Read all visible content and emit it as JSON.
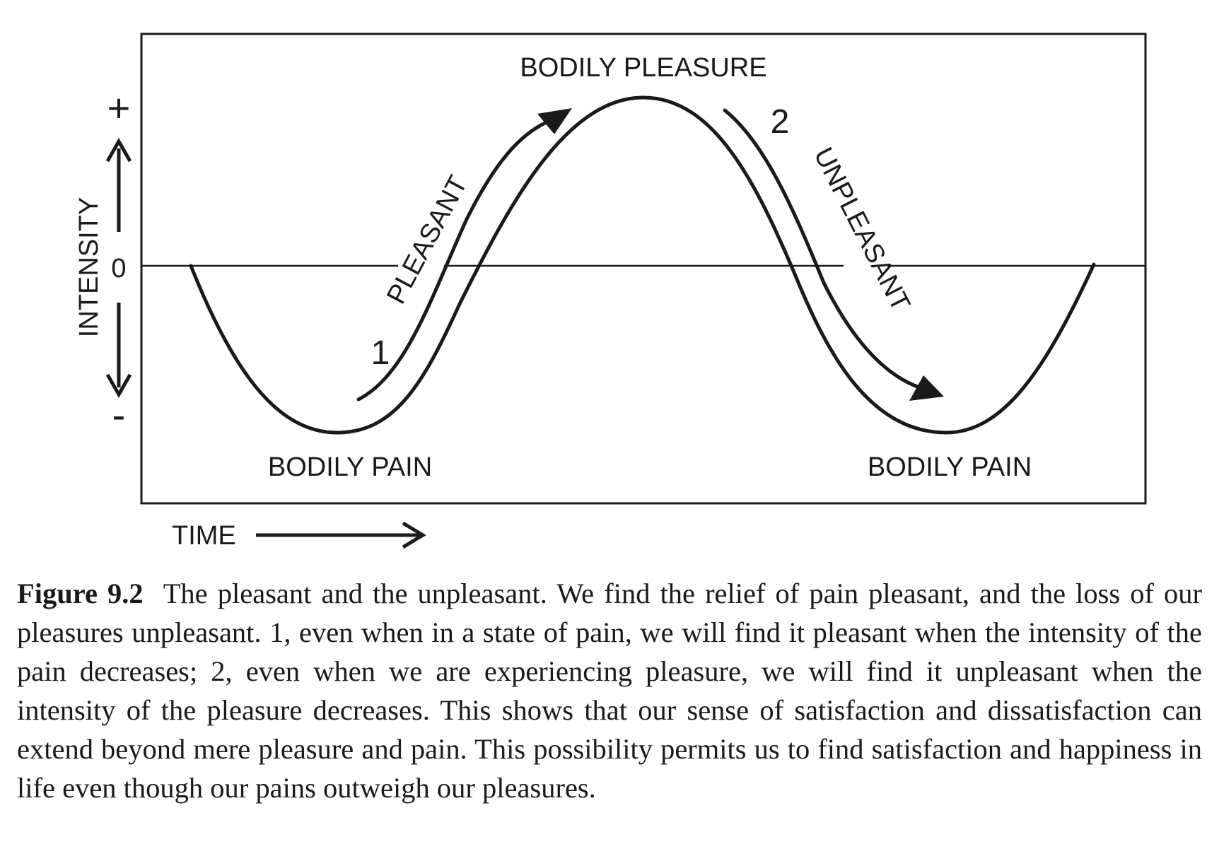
{
  "diagram": {
    "title_top": "BODILY PLEASURE",
    "label_pain_left": "BODILY PAIN",
    "label_pain_right": "BODILY PAIN",
    "label_pleasant": "PLEASANT",
    "label_unpleasant": "UNPLEASANT",
    "marker_1": "1",
    "marker_2": "2",
    "y_axis_label": "INTENSITY",
    "y_plus": "+",
    "y_zero": "0",
    "y_minus": "-",
    "x_axis_label": "TIME"
  },
  "caption": {
    "label": "Figure 9.2",
    "text": "The pleasant and the unpleasant. We find the relief of pain pleasant, and the loss of our pleasures unpleasant. 1, even when in a state of pain, we will find it pleasant when the intensity of the pain decreases; 2, even when we are experiencing pleasure, we will find it unpleasant when the intensity of the pleasure decreases. This shows that our sense of satisfaction and dissatisfaction can extend beyond mere pleasure and pain. This possibility permits us to find satisfaction and happiness in life even though our pains outweigh our pleasures."
  }
}
